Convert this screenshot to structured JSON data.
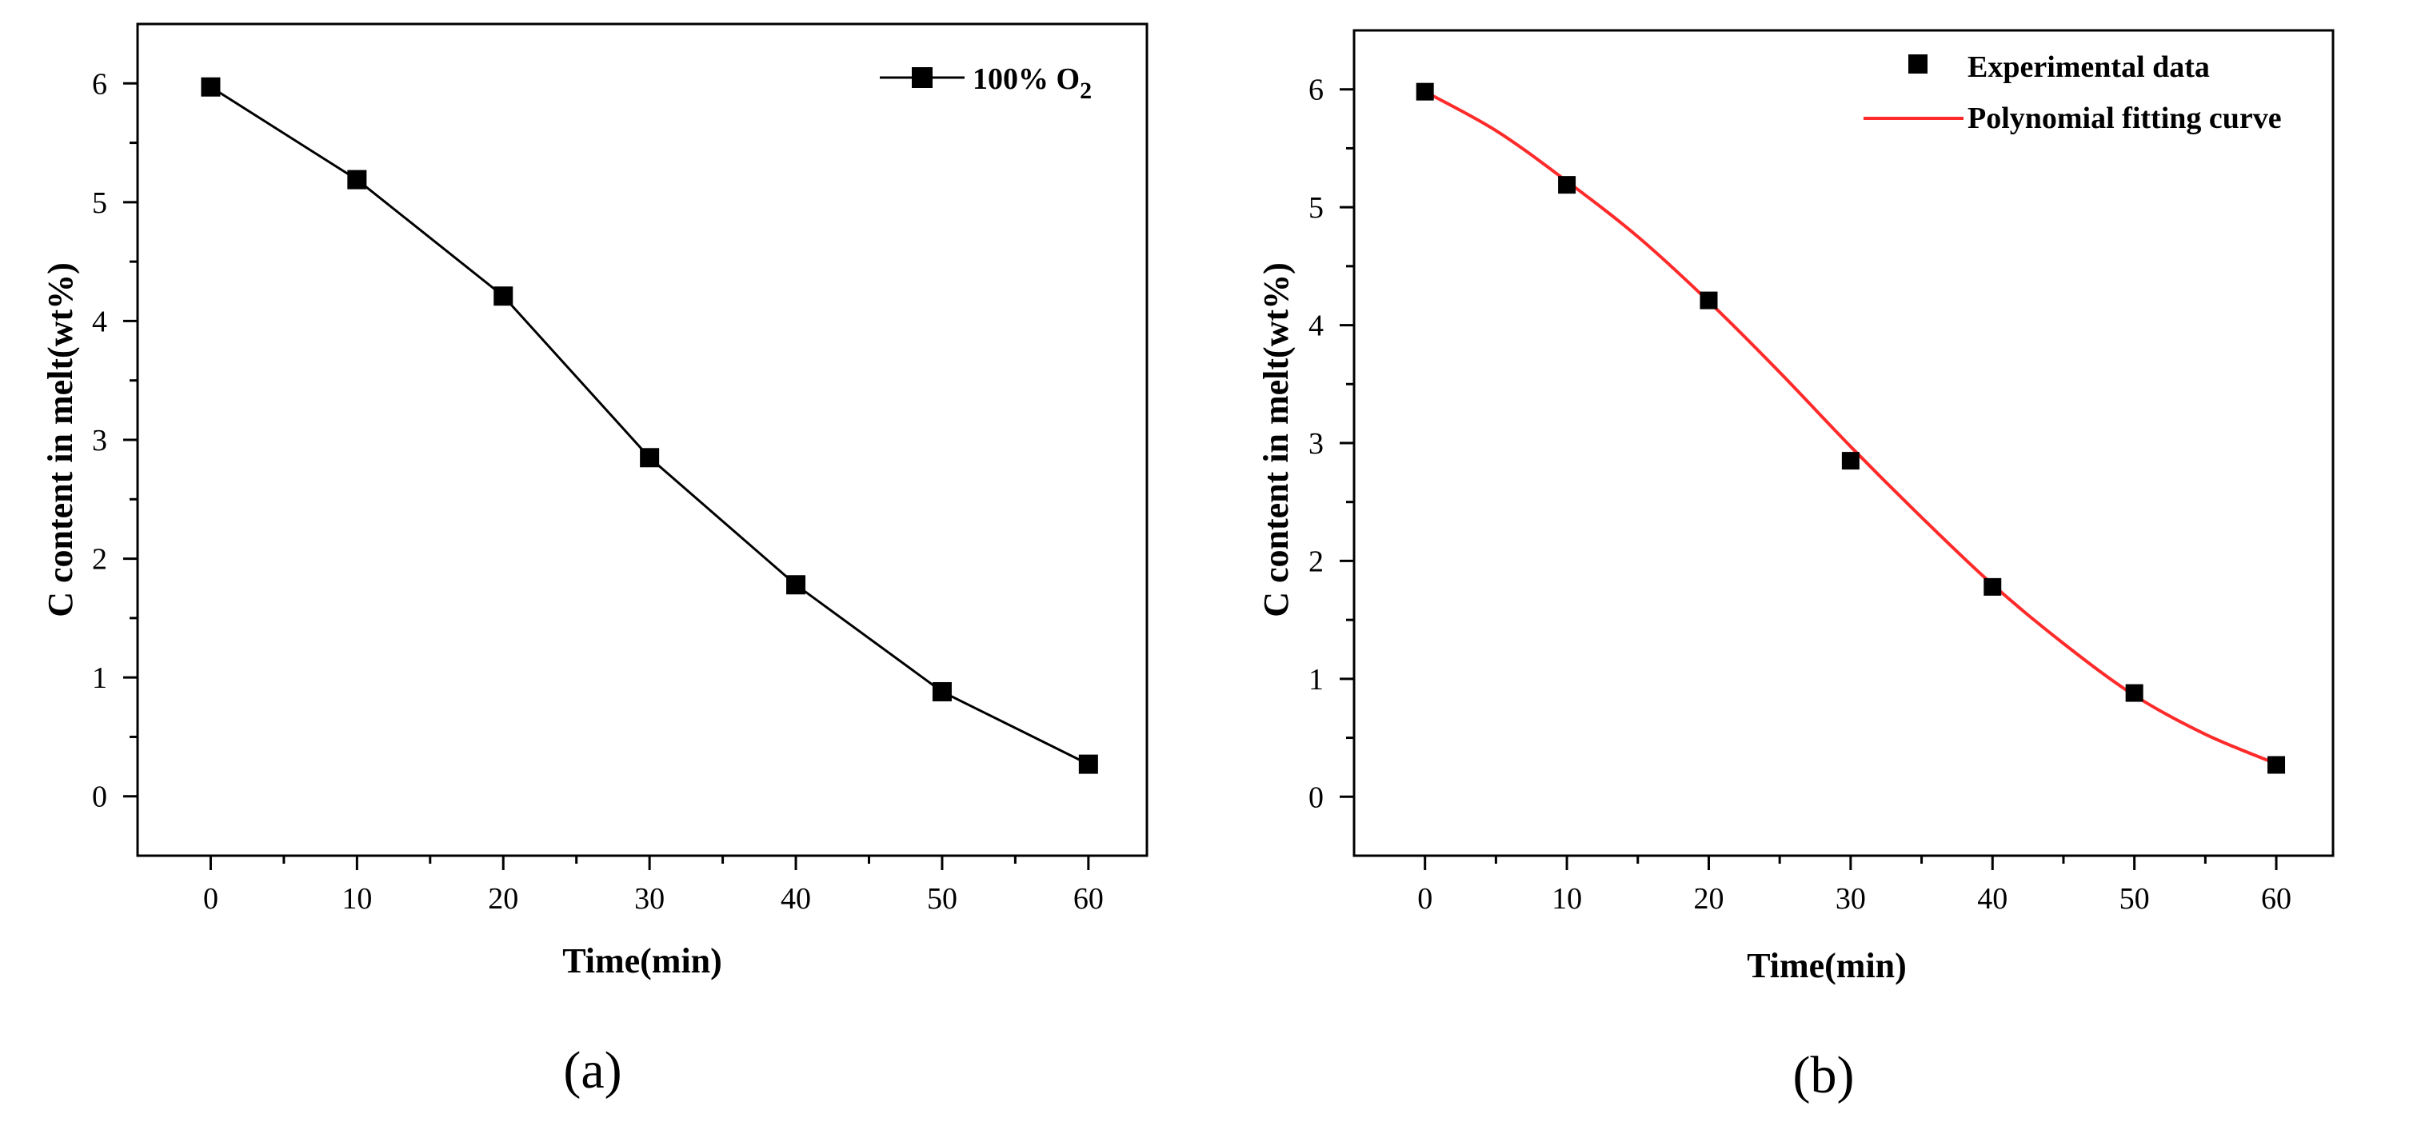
{
  "chart_data": [
    {
      "panel": "(a)",
      "type": "line",
      "xlabel": "Time(min)",
      "ylabel": "C content in melt(wt%)",
      "xlim": [
        -5,
        64
      ],
      "ylim": [
        -0.5,
        6.5
      ],
      "xticks": [
        0,
        10,
        20,
        30,
        40,
        50,
        60
      ],
      "yticks": [
        0,
        1,
        2,
        3,
        4,
        5,
        6
      ],
      "series": [
        {
          "name": "100% O2",
          "legend_main": "100% O",
          "legend_sub": "2",
          "marker": "square",
          "line_color": "#000000",
          "marker_color": "#000000",
          "x": [
            0,
            10,
            20,
            30,
            40,
            50,
            60
          ],
          "y": [
            5.97,
            5.19,
            4.21,
            2.85,
            1.78,
            0.88,
            0.27
          ]
        }
      ],
      "legend_position": "top-right"
    },
    {
      "panel": "(b)",
      "type": "scatter",
      "xlabel": "Time(min)",
      "ylabel": "C content in melt(wt%)",
      "xlim": [
        -5,
        64
      ],
      "ylim": [
        -0.5,
        6.5
      ],
      "xticks": [
        0,
        10,
        20,
        30,
        40,
        50,
        60
      ],
      "yticks": [
        0,
        1,
        2,
        3,
        4,
        5,
        6
      ],
      "series": [
        {
          "name": "Experimental data",
          "marker": "square",
          "marker_color": "#000000",
          "x": [
            0,
            10,
            20,
            30,
            40,
            50,
            60
          ],
          "y": [
            5.98,
            5.19,
            4.21,
            2.85,
            1.78,
            0.88,
            0.27
          ]
        },
        {
          "name": "Polynomial fitting curve",
          "line_color": "#ff2a2a",
          "x": [
            0,
            5,
            10,
            15,
            20,
            25,
            30,
            35,
            40,
            45,
            50,
            55,
            60
          ],
          "y": [
            5.98,
            5.65,
            5.22,
            4.75,
            4.2,
            3.6,
            2.97,
            2.37,
            1.8,
            1.3,
            0.86,
            0.53,
            0.28
          ]
        }
      ],
      "legend_position": "top-right"
    }
  ]
}
